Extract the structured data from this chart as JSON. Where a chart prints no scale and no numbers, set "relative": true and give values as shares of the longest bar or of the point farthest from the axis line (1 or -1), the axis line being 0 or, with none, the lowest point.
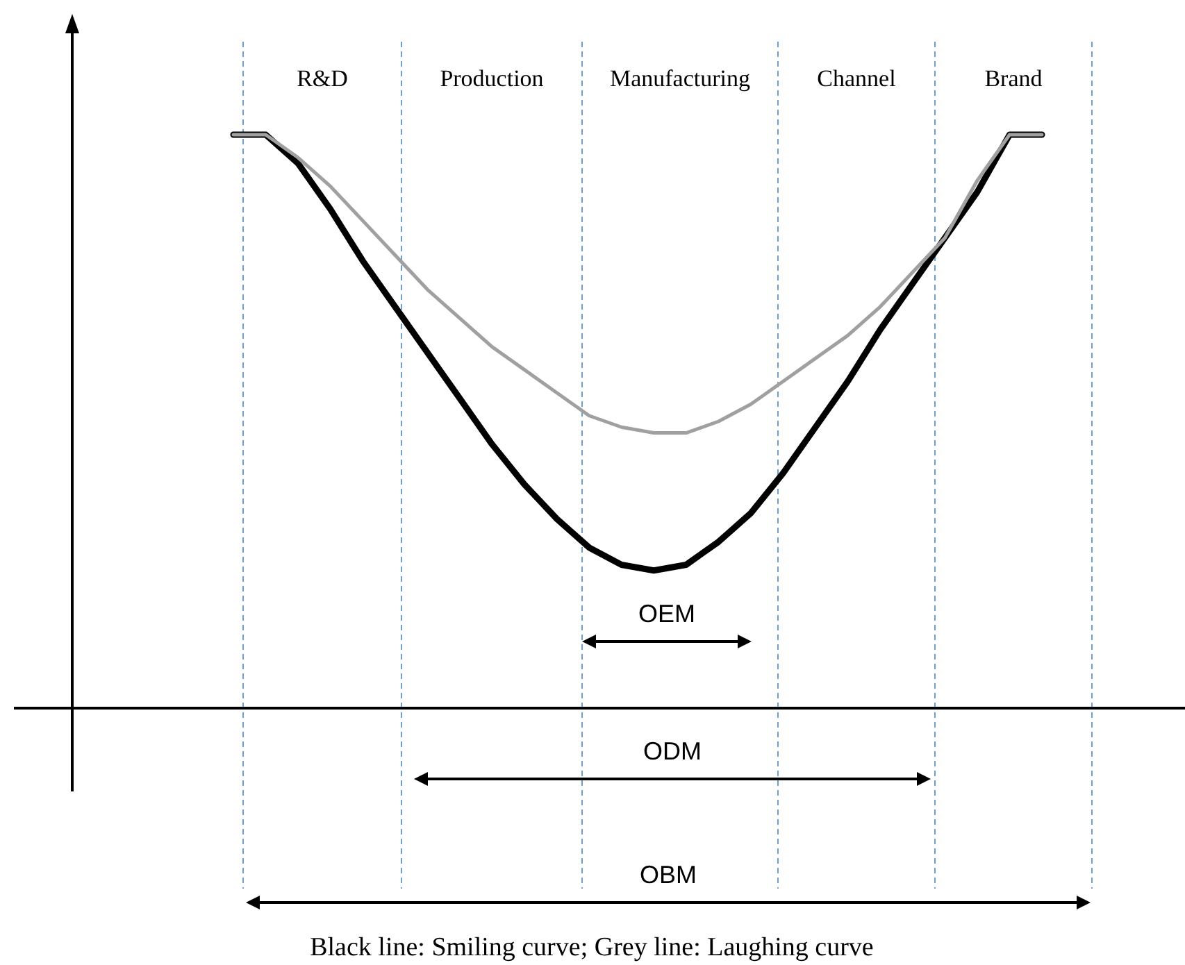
{
  "chart_data": {
    "type": "line",
    "relative": true,
    "categories": [
      null,
      null,
      null,
      null,
      null,
      null,
      null,
      null,
      null,
      null,
      null,
      null,
      null,
      null,
      null,
      null,
      null,
      null,
      null,
      null,
      null,
      null,
      null,
      null,
      null,
      null
    ],
    "series": [
      {
        "color": "#000000",
        "values": [
          1,
          1,
          0.95,
          0.87,
          0.78,
          0.7,
          0.62,
          0.54,
          0.46,
          0.39,
          0.33,
          0.28,
          0.25,
          0.24,
          0.25,
          0.29,
          0.34,
          0.41,
          0.49,
          0.57,
          0.66,
          0.74,
          0.82,
          0.9,
          1,
          1
        ]
      },
      {
        "color": "#a0a0a0",
        "values": [
          1,
          1,
          0.96,
          0.91,
          0.85,
          0.79,
          0.73,
          0.68,
          0.63,
          0.59,
          0.55,
          0.51,
          0.49,
          0.48,
          0.48,
          0.5,
          0.53,
          0.57,
          0.61,
          0.65,
          0.7,
          0.76,
          0.82,
          0.92,
          1,
          1
        ]
      }
    ],
    "annotations": [
      "R&D",
      "Production",
      "Manufacturing",
      "Channel",
      "Brand",
      "OEM",
      "ODM",
      "OBM",
      "Black line: Smiling curve; Grey line: Laughing curve"
    ]
  }
}
